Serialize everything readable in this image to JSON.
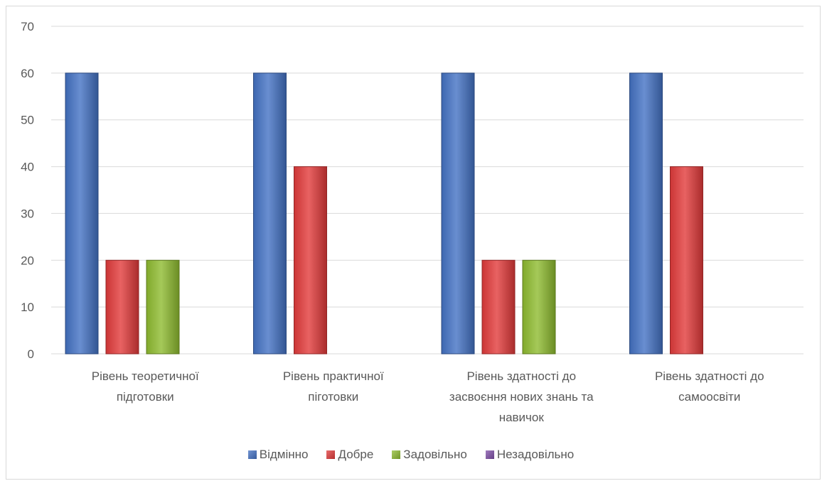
{
  "chart_data": {
    "type": "bar",
    "title": "",
    "xlabel": "",
    "ylabel": "",
    "ylim": [
      0,
      70
    ],
    "yticks": [
      0,
      10,
      20,
      30,
      40,
      50,
      60,
      70
    ],
    "grid": true,
    "legend_position": "bottom",
    "categories": [
      [
        "Рівень теоретичної",
        "підготовки"
      ],
      [
        "Рівень практичної",
        "піготовки"
      ],
      [
        "Рівень здатності до",
        "засвоєння нових знань та",
        "навичок"
      ],
      [
        "Рівень здатності до",
        "самоосвіти"
      ]
    ],
    "series": [
      {
        "name": "Відмінно",
        "color": "#4472c4",
        "values": [
          60,
          60,
          60,
          60
        ]
      },
      {
        "name": "Добре",
        "color": "#e23b3b",
        "values": [
          20,
          40,
          20,
          40
        ]
      },
      {
        "name": "Задовільно",
        "color": "#8fbc30",
        "values": [
          20,
          0,
          20,
          0
        ]
      },
      {
        "name": "Незадовільно",
        "color": "#7f4fa8",
        "values": [
          0,
          0,
          0,
          0
        ]
      }
    ]
  }
}
